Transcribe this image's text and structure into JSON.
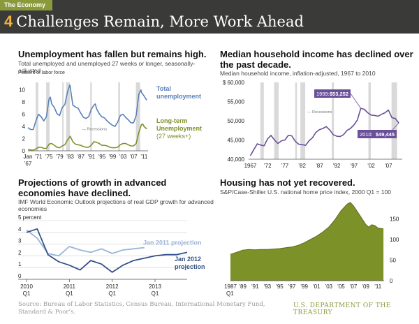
{
  "header": {
    "eyebrow": "The Economy",
    "number": "4",
    "title": "Challenges Remain, More Work Ahead"
  },
  "footer": {
    "source": "Source: Bureau of Labor Statistics, Census Bureau, International Monetary Fund, Standard & Poor’s.",
    "dept": "U.S. DEPARTMENT OF THE TREASURY"
  },
  "colors": {
    "blue": "#5a7fb8",
    "green": "#7d9129",
    "purple": "#6a4f9a",
    "navy": "#33508a",
    "lightblue": "#9ab4d8",
    "recession": "#d9d9d9",
    "banner": "#3a3a38",
    "eyebrow": "#8a9a3a",
    "number": "#f0b43a"
  },
  "chart_data": [
    {
      "type": "line",
      "title": "Unemployment has fallen but remains high.",
      "subtitle": "Total unemployed and unemployed 27 weeks or longer, seasonally-adjusted",
      "ylabel": "Percent of labor force",
      "ylim": [
        0,
        11
      ],
      "yticks": [
        "0",
        "2",
        "4",
        "6",
        "8",
        "10"
      ],
      "xticks": [
        {
          "label": "Jan",
          "sub": "’67",
          "x": 1967
        },
        {
          "label": "’71",
          "x": 1971
        },
        {
          "label": "’75",
          "x": 1975
        },
        {
          "label": "’79",
          "x": 1979
        },
        {
          "label": "’83",
          "x": 1983
        },
        {
          "label": "’87",
          "x": 1987
        },
        {
          "label": "’91",
          "x": 1991
        },
        {
          "label": "’95",
          "x": 1995
        },
        {
          "label": "’99",
          "x": 1999
        },
        {
          "label": "’03",
          "x": 2003
        },
        {
          "label": "’07",
          "x": 2007
        },
        {
          "label": "’11",
          "x": 2011
        }
      ],
      "recession_label": "Recessions",
      "recessions": [
        [
          1969.9,
          1970.9
        ],
        [
          1973.9,
          1975.2
        ],
        [
          1980.0,
          1980.5
        ],
        [
          1981.5,
          1982.9
        ],
        [
          1990.6,
          1991.2
        ],
        [
          2001.2,
          2001.9
        ],
        [
          2007.9,
          2009.5
        ]
      ],
      "series": [
        {
          "name": "Total unemployment",
          "label_lines": [
            "Total",
            "unemployment"
          ],
          "color": "blue",
          "x": [
            1967,
            1968,
            1969,
            1970,
            1971,
            1972,
            1973,
            1974,
            1975,
            1975.5,
            1976,
            1977,
            1978,
            1979,
            1980,
            1981,
            1982,
            1982.9,
            1984,
            1985,
            1986,
            1987,
            1988,
            1989,
            1990,
            1991,
            1992,
            1992.5,
            1993,
            1994,
            1995,
            1996,
            1997,
            1998,
            1999,
            2000,
            2001,
            2002,
            2003,
            2004,
            2005,
            2006,
            2007,
            2008,
            2009,
            2009.8,
            2010,
            2011,
            2012
          ],
          "y": [
            3.8,
            3.5,
            3.5,
            4.9,
            6.0,
            5.6,
            4.9,
            5.6,
            8.5,
            8.8,
            7.7,
            7.1,
            6.1,
            5.8,
            7.1,
            7.6,
            9.7,
            10.8,
            7.5,
            7.2,
            7.0,
            6.2,
            5.5,
            5.3,
            5.6,
            6.8,
            7.5,
            7.7,
            6.9,
            6.1,
            5.6,
            5.4,
            4.9,
            4.5,
            4.2,
            4.0,
            4.7,
            5.8,
            6.0,
            5.5,
            5.1,
            4.6,
            4.6,
            5.8,
            9.3,
            10.0,
            9.6,
            9.0,
            8.3
          ]
        },
        {
          "name": "Long-term Unemployment (27 weeks+)",
          "label_lines": [
            "Long-term",
            "Unemployment",
            "(27 weeks+)"
          ],
          "color": "green",
          "x": [
            1967,
            1969,
            1970,
            1971,
            1972,
            1973,
            1974,
            1975,
            1976,
            1977,
            1978,
            1979,
            1980,
            1981,
            1982,
            1983,
            1984,
            1985,
            1986,
            1987,
            1988,
            1989,
            1990,
            1991,
            1992,
            1993,
            1994,
            1995,
            1996,
            1997,
            1998,
            1999,
            2000,
            2001,
            2002,
            2003,
            2004,
            2005,
            2006,
            2007,
            2008,
            2009,
            2010,
            2010.5,
            2011,
            2012
          ],
          "y": [
            0.2,
            0.1,
            0.3,
            0.6,
            0.6,
            0.4,
            0.4,
            1.1,
            1.2,
            0.9,
            0.6,
            0.5,
            0.8,
            1.0,
            1.8,
            2.4,
            1.5,
            1.1,
            1.0,
            0.9,
            0.7,
            0.6,
            0.6,
            0.9,
            1.5,
            1.4,
            1.2,
            0.9,
            0.9,
            0.8,
            0.6,
            0.5,
            0.5,
            0.6,
            1.0,
            1.2,
            1.2,
            1.0,
            0.8,
            0.8,
            1.2,
            3.0,
            4.3,
            4.4,
            4.0,
            3.6
          ]
        }
      ]
    },
    {
      "type": "line",
      "title": "Median household income has declined over the past decade.",
      "subtitle": "Median household income, inflation-adjusted, 1967 to 2010",
      "ylim": [
        40000,
        60000
      ],
      "yticks": [
        "$ 60,000",
        "55,000",
        "50,000",
        "45,000",
        "40,000"
      ],
      "xticks": [
        {
          "label": "1967",
          "x": 1967
        },
        {
          "label": "’72",
          "x": 1972
        },
        {
          "label": "’77",
          "x": 1977
        },
        {
          "label": "’82",
          "x": 1982
        },
        {
          "label": "’87",
          "x": 1987
        },
        {
          "label": "’92",
          "x": 1992
        },
        {
          "label": "’97",
          "x": 1997
        },
        {
          "label": "’02",
          "x": 2002
        },
        {
          "label": "’07",
          "x": 2007
        }
      ],
      "recession_label": "Recessions",
      "recessions": [
        [
          1969.9,
          1970.9
        ],
        [
          1973.9,
          1975.2
        ],
        [
          1980.0,
          1980.5
        ],
        [
          1981.5,
          1982.9
        ],
        [
          1990.6,
          1991.2
        ],
        [
          2001.2,
          2001.9
        ],
        [
          2007.9,
          2009.5
        ]
      ],
      "annotations": [
        {
          "year_label": "1999:",
          "value_label": "$53,252",
          "x": 1999,
          "y": 53252
        },
        {
          "year_label": "2010:",
          "value_label": "$49,445",
          "x": 2010,
          "y": 49445
        }
      ],
      "series": [
        {
          "name": "Median household income",
          "color": "purple",
          "x": [
            1967,
            1968,
            1969,
            1970,
            1971,
            1972,
            1973,
            1974,
            1975,
            1976,
            1977,
            1978,
            1979,
            1980,
            1981,
            1982,
            1983,
            1984,
            1985,
            1986,
            1987,
            1988,
            1989,
            1990,
            1991,
            1992,
            1993,
            1994,
            1995,
            1996,
            1997,
            1998,
            1999,
            2000,
            2001,
            2002,
            2003,
            2004,
            2005,
            2006,
            2007,
            2008,
            2009,
            2010
          ],
          "y": [
            40900,
            42500,
            44000,
            43700,
            43500,
            45300,
            46200,
            45000,
            44100,
            44800,
            45000,
            46200,
            46100,
            44700,
            43900,
            43800,
            43600,
            44800,
            45600,
            47000,
            47700,
            48000,
            48500,
            47600,
            46400,
            46000,
            45900,
            46400,
            47500,
            48000,
            48900,
            50200,
            53252,
            53000,
            52100,
            51500,
            51400,
            51200,
            51700,
            52100,
            52800,
            50800,
            50600,
            49445
          ]
        }
      ]
    },
    {
      "type": "line",
      "title": "Projections of growth in advanced economies have declined.",
      "subtitle": "IMF World Economic Outlook projections of real GDP growth for advanced economies",
      "ylim": [
        0,
        5
      ],
      "yticks": [
        "0",
        "1",
        "2",
        "3",
        "4",
        "5 percent"
      ],
      "xticks": [
        {
          "label": "2010",
          "sub": "Q1",
          "x": 0
        },
        {
          "label": "2011",
          "sub": "Q1",
          "x": 4
        },
        {
          "label": "2012",
          "sub": "Q1",
          "x": 8
        },
        {
          "label": "2013",
          "sub": "Q1",
          "x": 12
        }
      ],
      "series": [
        {
          "name": "Jan 2011 projection",
          "label_lines": [
            "Jan 2011 projection"
          ],
          "color": "lightblue",
          "x": [
            0,
            1,
            2,
            3,
            4,
            5,
            6,
            7,
            8,
            9,
            10,
            11
          ],
          "y": [
            4.2,
            3.5,
            2.2,
            2.0,
            2.8,
            2.5,
            2.3,
            2.6,
            2.2,
            2.5,
            2.6,
            2.7
          ]
        },
        {
          "name": "Jan 2012 projection",
          "label_lines": [
            "Jan 2012",
            "projection"
          ],
          "color": "navy",
          "x": [
            0,
            1,
            2,
            3,
            4,
            5,
            6,
            7,
            8,
            9,
            10,
            11,
            12,
            13,
            14,
            15
          ],
          "y": [
            4.0,
            4.3,
            2.1,
            1.5,
            1.2,
            0.8,
            1.6,
            1.3,
            0.6,
            1.2,
            1.6,
            1.8,
            2.0,
            2.1,
            2.1,
            2.3
          ]
        }
      ]
    },
    {
      "type": "area",
      "title": "Housing has not yet recovered.",
      "subtitle": "S&P/Case-Shiller U.S. national home price index, 2000 Q1 = 100",
      "ylim": [
        0,
        200
      ],
      "yticks": [
        "0",
        "50",
        "100",
        "150"
      ],
      "ytick_values": [
        0,
        50,
        100,
        150
      ],
      "xticks": [
        {
          "label": "1987",
          "sub": "Q1",
          "x": 1987
        },
        {
          "label": "’89",
          "x": 1989
        },
        {
          "label": "’91",
          "x": 1991
        },
        {
          "label": "’93",
          "x": 1993
        },
        {
          "label": "’95",
          "x": 1995
        },
        {
          "label": "’97",
          "x": 1997
        },
        {
          "label": "’99",
          "x": 1999
        },
        {
          "label": "’01",
          "x": 2001
        },
        {
          "label": "’03",
          "x": 2003
        },
        {
          "label": "’05",
          "x": 2005
        },
        {
          "label": "’07",
          "x": 2007
        },
        {
          "label": "’09",
          "x": 2009
        },
        {
          "label": "’11",
          "x": 2011
        }
      ],
      "series": [
        {
          "name": "Home price index",
          "color": "green",
          "x": [
            1987,
            1988,
            1989,
            1990,
            1991,
            1992,
            1993,
            1994,
            1995,
            1996,
            1997,
            1998,
            1999,
            2000,
            2001,
            2002,
            2003,
            2004,
            2005,
            2006,
            2006.5,
            2007,
            2008,
            2009,
            2009.5,
            2010,
            2010.5,
            2011,
            2011.9
          ],
          "y": [
            64,
            69,
            74,
            76,
            75,
            76,
            76,
            77,
            78,
            80,
            82,
            86,
            92,
            100,
            108,
            118,
            130,
            148,
            170,
            186,
            190,
            182,
            160,
            137,
            130,
            136,
            134,
            128,
            126
          ]
        }
      ]
    }
  ]
}
